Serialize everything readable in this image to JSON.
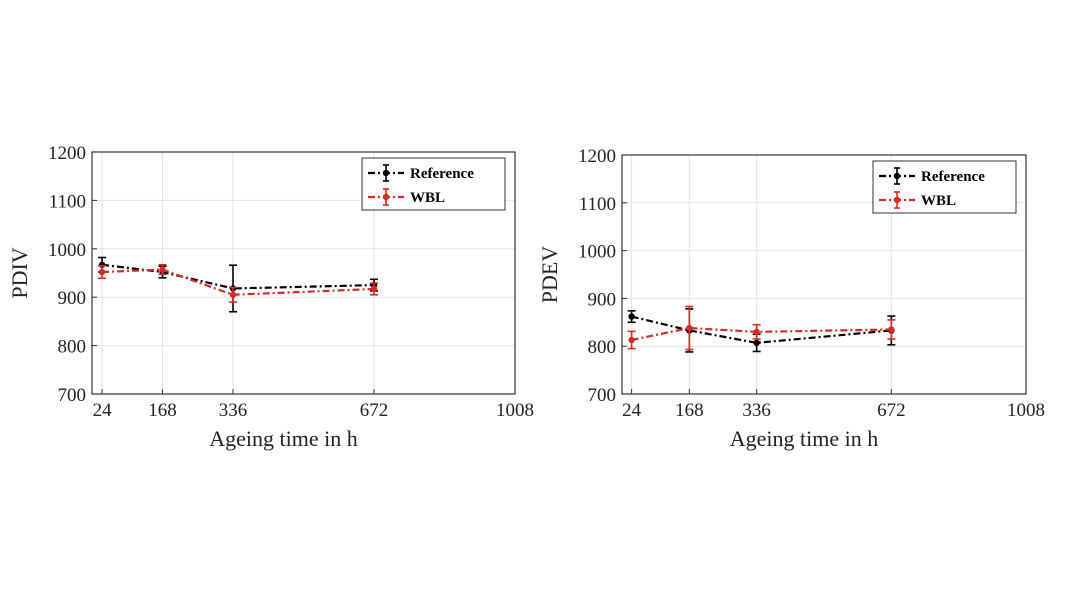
{
  "chart_data": [
    {
      "type": "line",
      "title": "",
      "xlabel": "Ageing time in h",
      "ylabel": "PDIV",
      "x_ticks": [
        24,
        168,
        336,
        672,
        1008
      ],
      "y_ticks": [
        700,
        800,
        900,
        1000,
        1100,
        1200
      ],
      "xlim": [
        0,
        1008
      ],
      "ylim": [
        700,
        1200
      ],
      "grid": true,
      "legend_position": "top-right",
      "series": [
        {
          "name": "Reference",
          "color": "#000000",
          "x": [
            24,
            168,
            336,
            672
          ],
          "y": [
            967,
            952,
            918,
            925
          ],
          "err": [
            15,
            12,
            48,
            12
          ]
        },
        {
          "name": "WBL",
          "color": "#d42a2a",
          "x": [
            24,
            168,
            336,
            672
          ],
          "y": [
            952,
            957,
            905,
            917
          ],
          "err": [
            13,
            10,
            15,
            12
          ]
        }
      ]
    },
    {
      "type": "line",
      "title": "",
      "xlabel": "Ageing time in h",
      "ylabel": "PDEV",
      "x_ticks": [
        24,
        168,
        336,
        672,
        1008
      ],
      "y_ticks": [
        700,
        800,
        900,
        1000,
        1100,
        1200
      ],
      "xlim": [
        0,
        1008
      ],
      "ylim": [
        700,
        1200
      ],
      "grid": true,
      "legend_position": "top-right",
      "series": [
        {
          "name": "Reference",
          "color": "#000000",
          "x": [
            24,
            168,
            336,
            672
          ],
          "y": [
            862,
            833,
            807,
            833
          ],
          "err": [
            12,
            45,
            18,
            30
          ]
        },
        {
          "name": "WBL",
          "color": "#d42a2a",
          "x": [
            24,
            168,
            336,
            672
          ],
          "y": [
            813,
            838,
            830,
            835
          ],
          "err": [
            18,
            45,
            15,
            20
          ]
        }
      ]
    }
  ]
}
